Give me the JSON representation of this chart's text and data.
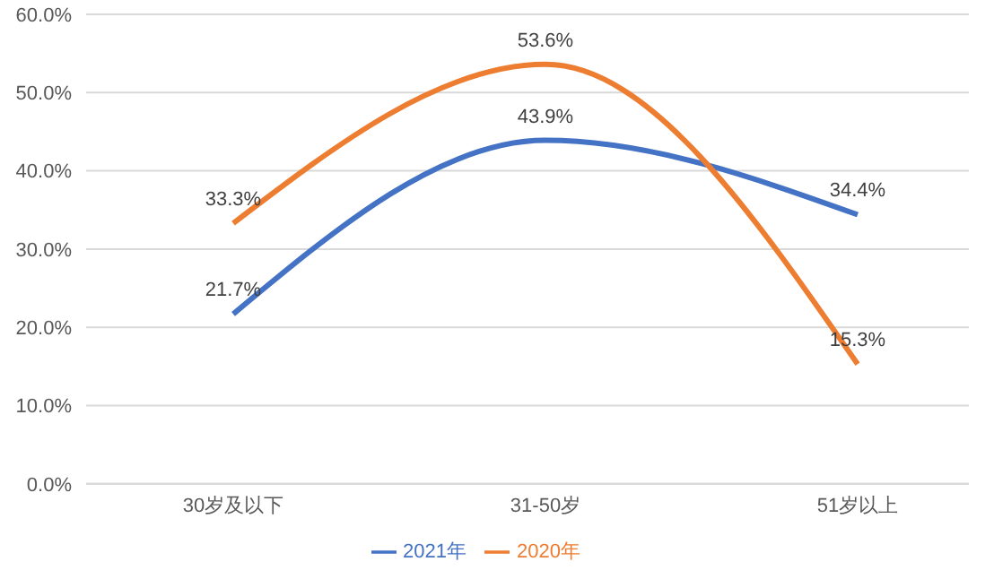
{
  "chart_data": {
    "type": "line",
    "categories": [
      "30岁及以下",
      "31-50岁",
      "51岁以上"
    ],
    "series": [
      {
        "name": "2021年",
        "color": "#4472c4",
        "values": [
          21.7,
          43.9,
          34.4
        ],
        "value_labels": [
          "21.7%",
          "43.9%",
          "34.4%"
        ]
      },
      {
        "name": "2020年",
        "color": "#ed7d31",
        "values": [
          33.3,
          53.6,
          15.3
        ],
        "value_labels": [
          "33.3%",
          "53.6%",
          "15.3%"
        ]
      }
    ],
    "ylim": [
      0,
      60
    ],
    "yticks": [
      {
        "value": 0,
        "label": "0.0%"
      },
      {
        "value": 10,
        "label": "10.0%"
      },
      {
        "value": 20,
        "label": "20.0%"
      },
      {
        "value": 30,
        "label": "30.0%"
      },
      {
        "value": 40,
        "label": "40.0%"
      },
      {
        "value": 50,
        "label": "50.0%"
      },
      {
        "value": 60,
        "label": "60.0%"
      }
    ],
    "grid": "y",
    "legend": "bottom"
  }
}
